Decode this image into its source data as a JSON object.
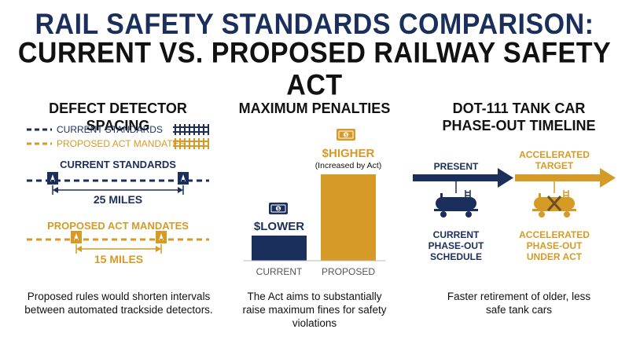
{
  "title": {
    "line1": "RAIL SAFETY STANDARDS COMPARISON:",
    "line2": "CURRENT VS. PROPOSED RAILWAY SAFETY ACT"
  },
  "colors": {
    "navy": "#1b2f5c",
    "gold": "#d69a26",
    "text": "#111111"
  },
  "detector": {
    "title": "DEFECT DETECTOR SPACING",
    "legend": [
      {
        "label": "CURRENT STANDARDS",
        "color": "#1b2f5c",
        "icon": "railroad-track-icon"
      },
      {
        "label": "PROPOSED ACT MANDATES",
        "color": "#d69a26",
        "icon": "railroad-track-icon"
      }
    ],
    "current": {
      "label": "CURRENT STANDARDS",
      "distance": "25 MILES",
      "miles": 25
    },
    "proposed": {
      "label": "PROPOSED ACT MANDATES",
      "distance": "15 MILES",
      "miles": 15
    },
    "caption": "Proposed rules would shorten intervals between automated trackside detectors."
  },
  "penalties": {
    "title": "MAXIMUM PENALTIES",
    "bars": [
      {
        "category": "CURRENT",
        "label": "$LOWER",
        "sublabel": "",
        "color": "#1b2f5c",
        "icon": "money-bill-icon"
      },
      {
        "category": "PROPOSED",
        "label": "$HIGHER",
        "sublabel": "(Increased by Act)",
        "color": "#d69a26",
        "icon": "money-bill-icon"
      }
    ],
    "caption": "The Act aims to substantially raise maximum fines for safety violations"
  },
  "timeline": {
    "title_line1": "DOT-111 TANK CAR",
    "title_line2": "PHASE-OUT TIMELINE",
    "present_label": "PRESENT",
    "target_label_line1": "ACCELERATED",
    "target_label_line2": "TARGET",
    "current_car": {
      "line1": "CURRENT",
      "line2": "PHASE-OUT",
      "line3": "SCHEDULE",
      "icon": "tank-car-icon"
    },
    "accelerated_car": {
      "line1": "ACCELERATED",
      "line2": "PHASE-OUT",
      "line3": "UNDER ACT",
      "icon": "tank-car-crossed-icon"
    },
    "caption": "Faster retirement of older, less safe tank cars"
  }
}
